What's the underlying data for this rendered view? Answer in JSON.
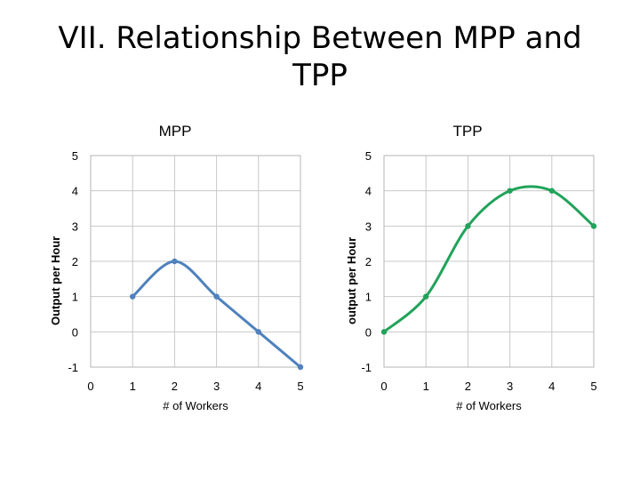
{
  "slide": {
    "title": "VII. Relationship Between MPP and\nTPP"
  },
  "chart_data": [
    {
      "type": "line",
      "title": "MPP",
      "xlabel": "# of Workers",
      "ylabel": "Output per Hour",
      "x_ticks": [
        0,
        1,
        2,
        3,
        4,
        5
      ],
      "y_ticks": [
        -1,
        0,
        1,
        2,
        3,
        4,
        5
      ],
      "xlim": [
        0,
        5
      ],
      "ylim": [
        -1,
        5
      ],
      "grid": true,
      "smooth": true,
      "color": "#4f81bd",
      "points": [
        {
          "x": 1,
          "y": 1
        },
        {
          "x": 2,
          "y": 2
        },
        {
          "x": 3,
          "y": 1
        },
        {
          "x": 4,
          "y": 0
        },
        {
          "x": 5,
          "y": -1
        }
      ]
    },
    {
      "type": "line",
      "title": "TPP",
      "xlabel": "# of Workers",
      "ylabel": "output per Hour",
      "x_ticks": [
        0,
        1,
        2,
        3,
        4,
        5
      ],
      "y_ticks": [
        -1,
        0,
        1,
        2,
        3,
        4,
        5
      ],
      "xlim": [
        0,
        5
      ],
      "ylim": [
        -1,
        5
      ],
      "grid": true,
      "smooth": true,
      "color": "#21a35a",
      "points": [
        {
          "x": 0,
          "y": 0
        },
        {
          "x": 1,
          "y": 1
        },
        {
          "x": 2,
          "y": 3
        },
        {
          "x": 3,
          "y": 4
        },
        {
          "x": 4,
          "y": 4
        },
        {
          "x": 5,
          "y": 3
        }
      ]
    }
  ]
}
